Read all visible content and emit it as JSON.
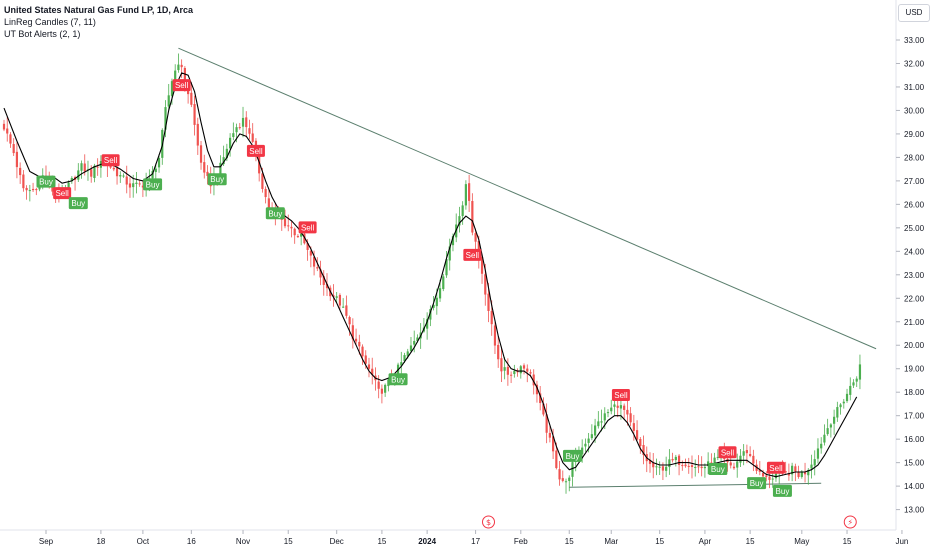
{
  "legend": {
    "title": "United States Natural Gas Fund LP, 1D, Arca",
    "indicator1": "LinReg Candles (7, 11)",
    "indicator2": "UT Bot Alerts (2, 1)"
  },
  "currency": "USD",
  "colors": {
    "up": "#26a69a",
    "up_candle": "#4caf50",
    "down": "#ef5350",
    "line": "#000000",
    "trend": "#5b7f6e",
    "buy_badge": "#4caf50",
    "sell_badge": "#f23645",
    "event": "#f23645"
  },
  "chart_data": {
    "type": "candlestick",
    "title": "",
    "xlabel": "",
    "ylabel": "",
    "ylim": [
      12.4,
      33.8
    ],
    "y_ticks": [
      "13.00",
      "14.00",
      "15.00",
      "16.00",
      "17.00",
      "18.00",
      "19.00",
      "20.00",
      "21.00",
      "22.00",
      "23.00",
      "24.00",
      "25.00",
      "26.00",
      "27.00",
      "28.00",
      "29.00",
      "30.00",
      "31.00",
      "32.00",
      "33.00"
    ],
    "x_ticks": [
      {
        "label": "Sep",
        "day": 13
      },
      {
        "label": "18",
        "day": 30
      },
      {
        "label": "Oct",
        "day": 43
      },
      {
        "label": "16",
        "day": 58
      },
      {
        "label": "Nov",
        "day": 74
      },
      {
        "label": "15",
        "day": 88
      },
      {
        "label": "Dec",
        "day": 103
      },
      {
        "label": "15",
        "day": 117
      },
      {
        "label": "2024",
        "day": 131
      },
      {
        "label": "17",
        "day": 146
      },
      {
        "label": "Feb",
        "day": 160
      },
      {
        "label": "15",
        "day": 175
      },
      {
        "label": "Mar",
        "day": 188
      },
      {
        "label": "15",
        "day": 203
      },
      {
        "label": "Apr",
        "day": 217
      },
      {
        "label": "15",
        "day": 231
      },
      {
        "label": "May",
        "day": 247
      },
      {
        "label": "15",
        "day": 261
      },
      {
        "label": "Jun",
        "day": 278
      }
    ],
    "close_anchors": [
      [
        0,
        29.3
      ],
      [
        3,
        28.2
      ],
      [
        6,
        26.6
      ],
      [
        9,
        26.6
      ],
      [
        12,
        27.2
      ],
      [
        15,
        26.6
      ],
      [
        18,
        26.4
      ],
      [
        21,
        27.0
      ],
      [
        24,
        27.6
      ],
      [
        27,
        27.3
      ],
      [
        30,
        27.9
      ],
      [
        33,
        27.6
      ],
      [
        36,
        27.2
      ],
      [
        39,
        26.8
      ],
      [
        42,
        26.8
      ],
      [
        45,
        27.0
      ],
      [
        48,
        28.0
      ],
      [
        50,
        30.0
      ],
      [
        52,
        31.3
      ],
      [
        54,
        32.1
      ],
      [
        56,
        31.3
      ],
      [
        58,
        30.2
      ],
      [
        60,
        28.5
      ],
      [
        62,
        27.2
      ],
      [
        64,
        26.9
      ],
      [
        66,
        27.2
      ],
      [
        68,
        28.0
      ],
      [
        70,
        28.8
      ],
      [
        72,
        29.3
      ],
      [
        74,
        29.6
      ],
      [
        76,
        29.1
      ],
      [
        78,
        28.0
      ],
      [
        80,
        26.8
      ],
      [
        82,
        25.8
      ],
      [
        84,
        25.5
      ],
      [
        86,
        25.3
      ],
      [
        88,
        25.1
      ],
      [
        90,
        24.8
      ],
      [
        92,
        24.6
      ],
      [
        94,
        24.0
      ],
      [
        96,
        23.4
      ],
      [
        98,
        22.9
      ],
      [
        100,
        22.4
      ],
      [
        102,
        22.1
      ],
      [
        104,
        21.8
      ],
      [
        106,
        21.2
      ],
      [
        108,
        20.4
      ],
      [
        110,
        19.8
      ],
      [
        112,
        19.2
      ],
      [
        114,
        18.7
      ],
      [
        116,
        18.0
      ],
      [
        118,
        18.2
      ],
      [
        120,
        18.6
      ],
      [
        122,
        19.0
      ],
      [
        124,
        19.5
      ],
      [
        126,
        19.9
      ],
      [
        128,
        20.4
      ],
      [
        130,
        20.9
      ],
      [
        132,
        21.4
      ],
      [
        134,
        22.1
      ],
      [
        136,
        23.1
      ],
      [
        138,
        24.2
      ],
      [
        140,
        25.2
      ],
      [
        142,
        26.1
      ],
      [
        143,
        26.7
      ],
      [
        144,
        26.3
      ],
      [
        145,
        24.9
      ],
      [
        146,
        24.4
      ],
      [
        148,
        23.1
      ],
      [
        150,
        21.5
      ],
      [
        152,
        20.0
      ],
      [
        154,
        19.0
      ],
      [
        156,
        18.8
      ],
      [
        158,
        18.9
      ],
      [
        160,
        19.1
      ],
      [
        162,
        19.0
      ],
      [
        164,
        18.4
      ],
      [
        166,
        17.4
      ],
      [
        168,
        16.4
      ],
      [
        170,
        15.4
      ],
      [
        172,
        14.4
      ],
      [
        174,
        14.1
      ],
      [
        176,
        14.9
      ],
      [
        178,
        15.4
      ],
      [
        180,
        15.9
      ],
      [
        182,
        16.3
      ],
      [
        184,
        16.7
      ],
      [
        186,
        17.0
      ],
      [
        188,
        17.3
      ],
      [
        190,
        17.5
      ],
      [
        192,
        17.2
      ],
      [
        194,
        16.6
      ],
      [
        196,
        15.9
      ],
      [
        198,
        15.3
      ],
      [
        200,
        14.9
      ],
      [
        202,
        14.7
      ],
      [
        204,
        14.8
      ],
      [
        206,
        15.0
      ],
      [
        208,
        15.1
      ],
      [
        210,
        15.0
      ],
      [
        212,
        15.0
      ],
      [
        214,
        14.8
      ],
      [
        216,
        14.8
      ],
      [
        218,
        14.9
      ],
      [
        220,
        15.1
      ],
      [
        222,
        15.2
      ],
      [
        224,
        14.9
      ],
      [
        226,
        14.8
      ],
      [
        228,
        15.3
      ],
      [
        230,
        15.5
      ],
      [
        232,
        15.0
      ],
      [
        234,
        14.5
      ],
      [
        236,
        14.3
      ],
      [
        238,
        14.4
      ],
      [
        240,
        14.6
      ],
      [
        242,
        14.5
      ],
      [
        244,
        14.7
      ],
      [
        246,
        14.5
      ],
      [
        248,
        14.6
      ],
      [
        250,
        15.0
      ],
      [
        252,
        15.6
      ],
      [
        254,
        16.2
      ],
      [
        256,
        16.8
      ],
      [
        258,
        17.2
      ],
      [
        260,
        17.7
      ],
      [
        262,
        18.2
      ],
      [
        264,
        18.7
      ],
      [
        265,
        19.1
      ]
    ],
    "series": [
      {
        "points": [
          [
            0,
            30.1
          ],
          [
            4,
            28.7
          ],
          [
            8,
            27.4
          ],
          [
            12,
            27.1
          ],
          [
            15,
            27.2
          ],
          [
            18,
            26.9
          ],
          [
            21,
            27.0
          ],
          [
            24,
            27.3
          ],
          [
            28,
            27.6
          ],
          [
            32,
            27.8
          ],
          [
            36,
            27.5
          ],
          [
            40,
            27.1
          ],
          [
            43,
            27.0
          ],
          [
            46,
            27.3
          ],
          [
            49,
            28.5
          ],
          [
            51,
            30.0
          ],
          [
            53,
            31.0
          ],
          [
            55,
            31.6
          ],
          [
            57,
            31.5
          ],
          [
            59,
            30.8
          ],
          [
            61,
            29.5
          ],
          [
            63,
            28.3
          ],
          [
            65,
            27.6
          ],
          [
            67,
            27.6
          ],
          [
            69,
            28.0
          ],
          [
            71,
            28.6
          ],
          [
            73,
            29.0
          ],
          [
            75,
            28.9
          ],
          [
            77,
            28.5
          ],
          [
            79,
            27.8
          ],
          [
            81,
            27.0
          ],
          [
            83,
            26.3
          ],
          [
            85,
            25.8
          ],
          [
            87,
            25.5
          ],
          [
            89,
            25.3
          ],
          [
            91,
            25.0
          ],
          [
            93,
            24.6
          ],
          [
            95,
            24.1
          ],
          [
            97,
            23.5
          ],
          [
            99,
            22.9
          ],
          [
            101,
            22.3
          ],
          [
            103,
            21.8
          ],
          [
            105,
            21.2
          ],
          [
            107,
            20.6
          ],
          [
            109,
            20.0
          ],
          [
            111,
            19.4
          ],
          [
            113,
            18.9
          ],
          [
            115,
            18.6
          ],
          [
            117,
            18.5
          ],
          [
            119,
            18.6
          ],
          [
            121,
            18.8
          ],
          [
            123,
            19.1
          ],
          [
            125,
            19.5
          ],
          [
            127,
            19.9
          ],
          [
            129,
            20.4
          ],
          [
            131,
            21.0
          ],
          [
            133,
            21.8
          ],
          [
            135,
            22.7
          ],
          [
            137,
            23.7
          ],
          [
            139,
            24.6
          ],
          [
            141,
            25.2
          ],
          [
            143,
            25.5
          ],
          [
            145,
            25.3
          ],
          [
            147,
            24.5
          ],
          [
            149,
            23.2
          ],
          [
            151,
            21.7
          ],
          [
            153,
            20.4
          ],
          [
            155,
            19.4
          ],
          [
            157,
            19.0
          ],
          [
            159,
            18.9
          ],
          [
            161,
            18.9
          ],
          [
            163,
            18.7
          ],
          [
            165,
            18.2
          ],
          [
            167,
            17.5
          ],
          [
            169,
            16.6
          ],
          [
            171,
            15.7
          ],
          [
            173,
            15.0
          ],
          [
            175,
            14.7
          ],
          [
            177,
            14.8
          ],
          [
            179,
            15.2
          ],
          [
            181,
            15.6
          ],
          [
            183,
            16.0
          ],
          [
            185,
            16.4
          ],
          [
            187,
            16.8
          ],
          [
            189,
            17.0
          ],
          [
            191,
            17.0
          ],
          [
            193,
            16.7
          ],
          [
            195,
            16.2
          ],
          [
            197,
            15.6
          ],
          [
            199,
            15.2
          ],
          [
            201,
            15.0
          ],
          [
            203,
            14.9
          ],
          [
            206,
            14.9
          ],
          [
            209,
            15.0
          ],
          [
            212,
            15.0
          ],
          [
            215,
            14.9
          ],
          [
            218,
            14.9
          ],
          [
            221,
            15.0
          ],
          [
            224,
            15.1
          ],
          [
            227,
            15.1
          ],
          [
            230,
            15.1
          ],
          [
            233,
            14.8
          ],
          [
            236,
            14.5
          ],
          [
            239,
            14.4
          ],
          [
            242,
            14.5
          ],
          [
            245,
            14.6
          ],
          [
            248,
            14.6
          ],
          [
            250,
            14.7
          ],
          [
            252,
            14.9
          ],
          [
            254,
            15.3
          ],
          [
            256,
            15.8
          ],
          [
            258,
            16.3
          ],
          [
            260,
            16.8
          ],
          [
            262,
            17.3
          ],
          [
            264,
            17.8
          ]
        ]
      }
    ],
    "trendlines": [
      {
        "x1": 54,
        "y1": 32.65,
        "x2": 270,
        "y2": 19.85
      },
      {
        "x1": 175,
        "y1": 13.95,
        "x2": 253,
        "y2": 14.12
      }
    ],
    "signals": [
      {
        "label": "Buy",
        "day": 13,
        "price": 26.97
      },
      {
        "label": "Sell",
        "day": 18,
        "price": 26.48
      },
      {
        "label": "Buy",
        "day": 23,
        "price": 26.05
      },
      {
        "label": "Sell",
        "day": 33,
        "price": 27.88
      },
      {
        "label": "Buy",
        "day": 46,
        "price": 26.85
      },
      {
        "label": "Sell",
        "day": 55,
        "price": 31.08
      },
      {
        "label": "Buy",
        "day": 66,
        "price": 27.07
      },
      {
        "label": "Sell",
        "day": 78,
        "price": 28.28
      },
      {
        "label": "Buy",
        "day": 84,
        "price": 25.62
      },
      {
        "label": "Sell",
        "day": 94,
        "price": 25.02
      },
      {
        "label": "Buy",
        "day": 122,
        "price": 18.55
      },
      {
        "label": "Sell",
        "day": 145,
        "price": 23.85
      },
      {
        "label": "Buy",
        "day": 176,
        "price": 15.29
      },
      {
        "label": "Sell",
        "day": 191,
        "price": 17.88
      },
      {
        "label": "Buy",
        "day": 221,
        "price": 14.73
      },
      {
        "label": "Sell",
        "day": 224,
        "price": 15.44
      },
      {
        "label": "Buy",
        "day": 233,
        "price": 14.13
      },
      {
        "label": "Sell",
        "day": 239,
        "price": 14.78
      },
      {
        "label": "Buy",
        "day": 241,
        "price": 13.8
      }
    ],
    "events": [
      {
        "glyph": "$",
        "day": 150
      },
      {
        "glyph": "⚡",
        "day": 262
      }
    ],
    "grid": false
  }
}
